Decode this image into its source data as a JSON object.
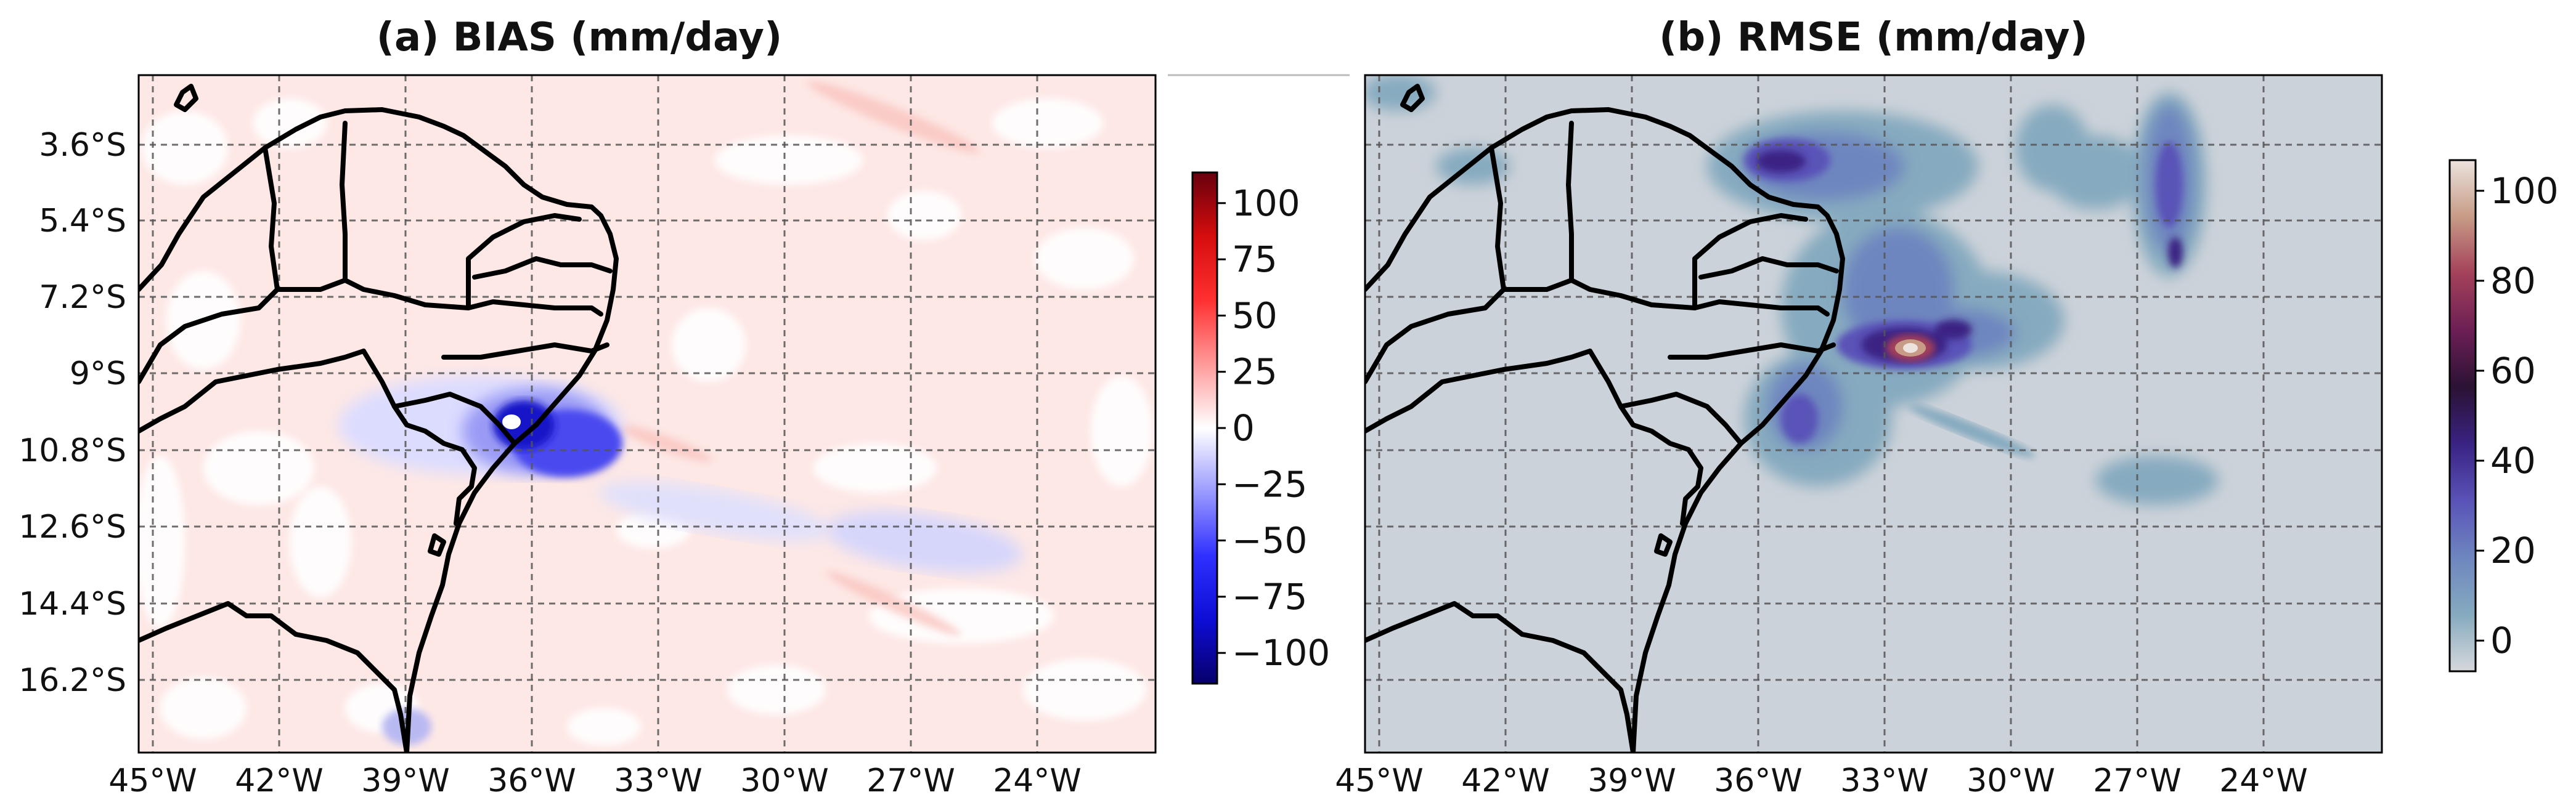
{
  "panels": [
    {
      "id": "bias",
      "title": "(a) BIAS (mm/day)",
      "background": "#fde8e6",
      "colorbar": {
        "ticks": [
          "100",
          "75",
          "50",
          "25",
          "0",
          "−25",
          "−50",
          "−75",
          "−100"
        ],
        "stops": [
          "#67000d",
          "#d60d0d",
          "#ff3030",
          "#ff9a9a",
          "#ffffff",
          "#9a9aff",
          "#3030ff",
          "#0d0dd6",
          "#08006b"
        ]
      }
    },
    {
      "id": "rmse",
      "title": "(b) RMSE (mm/day)",
      "background": "#ccd2d9",
      "colorbar": {
        "ticks": [
          "100",
          "80",
          "60",
          "40",
          "20",
          "0"
        ],
        "stops": [
          "#ece3de",
          "#c79b86",
          "#a4415a",
          "#6d1f55",
          "#2b1234",
          "#3a2383",
          "#5a53b8",
          "#6e86bf",
          "#86aabf",
          "#d6d8dc"
        ]
      }
    }
  ],
  "axes": {
    "lat_labels": [
      "3.6°S",
      "5.4°S",
      "7.2°S",
      "9°S",
      "10.8°S",
      "12.6°S",
      "14.4°S",
      "16.2°S"
    ],
    "lon_labels": [
      "45°W",
      "42°W",
      "39°W",
      "36°W",
      "33°W",
      "30°W",
      "27°W",
      "24°W"
    ]
  }
}
